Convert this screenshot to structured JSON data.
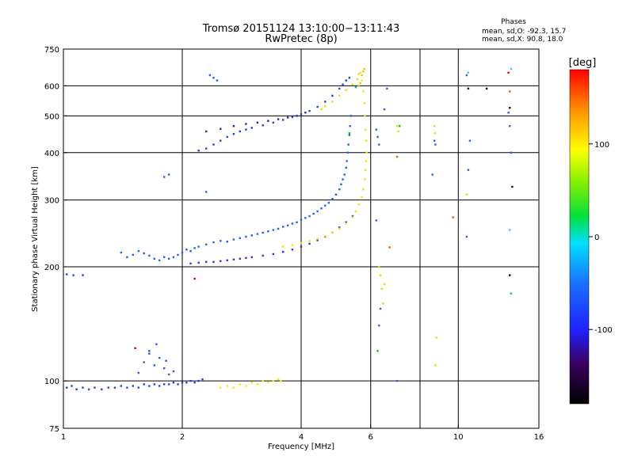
{
  "title_line1": "Tromsø 20151124 13:10:00−13:11:43",
  "title_line2": "RwPretec (8p)",
  "phases": {
    "heading": "Phases",
    "line_o": "mean, sd,O: -92.3, 15.7",
    "line_x": "mean, sd,X:  90.8, 18.0"
  },
  "colorbar": {
    "label": "[deg]",
    "ticks": [
      {
        "value": 100,
        "label": "100"
      },
      {
        "value": 0,
        "label": "0"
      },
      {
        "value": -100,
        "label": "-100"
      }
    ],
    "range": [
      -180,
      180
    ]
  },
  "chart_data": {
    "type": "scatter",
    "title": "Tromsø 20151124 13:10:00−13:11:43",
    "subtitle": "RwPretec (8p)",
    "xlabel": "Frequency [MHz]",
    "ylabel": "Stationary phase Virtual Height [km]",
    "x_scale": "log2",
    "y_scale": "log",
    "xlim": [
      1,
      16
    ],
    "ylim": [
      75,
      750
    ],
    "x_ticks": [
      {
        "value": 1,
        "label": "1"
      },
      {
        "value": 2,
        "label": "2"
      },
      {
        "value": 4,
        "label": "4"
      },
      {
        "value": 6,
        "label": "6"
      },
      {
        "value": 10,
        "label": "10"
      },
      {
        "value": 16,
        "label": "16"
      }
    ],
    "x_grid": [
      2,
      4,
      6,
      8,
      10
    ],
    "y_ticks": [
      {
        "value": 75,
        "label": "75"
      },
      {
        "value": 100,
        "label": "100"
      },
      {
        "value": 200,
        "label": "200"
      },
      {
        "value": 300,
        "label": "300"
      },
      {
        "value": 400,
        "label": "400"
      },
      {
        "value": 500,
        "label": "500"
      },
      {
        "value": 600,
        "label": "600"
      },
      {
        "value": 750,
        "label": "750"
      }
    ],
    "y_grid": [
      100,
      200,
      300,
      400,
      500,
      600
    ],
    "grid": true,
    "series": [
      {
        "color": "#1f3ff0",
        "phase": -95,
        "points": [
          [
            1.02,
            96
          ],
          [
            1.05,
            97
          ],
          [
            1.08,
            95
          ],
          [
            1.12,
            96
          ],
          [
            1.16,
            95
          ],
          [
            1.2,
            96
          ],
          [
            1.25,
            95
          ],
          [
            1.3,
            96
          ],
          [
            1.35,
            96
          ],
          [
            1.4,
            97
          ],
          [
            1.45,
            96
          ],
          [
            1.5,
            97
          ],
          [
            1.55,
            96
          ],
          [
            1.6,
            98
          ],
          [
            1.65,
            97
          ],
          [
            1.7,
            98
          ],
          [
            1.75,
            97
          ],
          [
            1.8,
            98
          ],
          [
            1.85,
            98
          ],
          [
            1.9,
            99
          ],
          [
            1.95,
            98
          ],
          [
            2.0,
            99
          ],
          [
            2.05,
            99
          ],
          [
            2.1,
            100
          ],
          [
            2.15,
            99
          ],
          [
            2.2,
            100
          ],
          [
            2.25,
            101
          ]
        ]
      },
      {
        "color": "#2a54ff",
        "phase": -80,
        "points": [
          [
            1.55,
            105
          ],
          [
            1.6,
            112
          ],
          [
            1.65,
            118
          ],
          [
            1.7,
            110
          ],
          [
            1.75,
            115
          ],
          [
            1.8,
            108
          ],
          [
            1.85,
            104
          ],
          [
            1.9,
            106
          ],
          [
            1.72,
            125
          ],
          [
            1.65,
            120
          ],
          [
            1.82,
            113
          ]
        ]
      },
      {
        "color": "#1e40e0",
        "phase": -100,
        "points": [
          [
            1.02,
            191
          ],
          [
            1.06,
            190
          ],
          [
            1.12,
            190
          ]
        ]
      },
      {
        "color": "#1d5fff",
        "phase": -90,
        "points": [
          [
            1.4,
            218
          ],
          [
            1.45,
            212
          ],
          [
            1.5,
            215
          ],
          [
            1.55,
            220
          ],
          [
            1.6,
            217
          ],
          [
            1.65,
            214
          ],
          [
            1.7,
            210
          ],
          [
            1.75,
            208
          ],
          [
            1.8,
            212
          ],
          [
            1.85,
            210
          ],
          [
            1.9,
            212
          ],
          [
            1.95,
            215
          ],
          [
            2.0,
            218
          ],
          [
            2.05,
            222
          ],
          [
            2.1,
            220
          ],
          [
            2.15,
            224
          ],
          [
            2.2,
            226
          ],
          [
            2.3,
            229
          ],
          [
            2.4,
            232
          ],
          [
            2.5,
            234
          ],
          [
            2.6,
            233
          ],
          [
            2.7,
            236
          ],
          [
            2.8,
            238
          ],
          [
            2.9,
            240
          ],
          [
            3.0,
            242
          ],
          [
            3.1,
            244
          ],
          [
            3.2,
            246
          ],
          [
            3.3,
            248
          ],
          [
            3.4,
            250
          ],
          [
            3.5,
            252
          ],
          [
            3.6,
            255
          ],
          [
            3.7,
            257
          ],
          [
            3.8,
            260
          ],
          [
            3.9,
            262
          ],
          [
            4.0,
            266
          ],
          [
            4.1,
            269
          ],
          [
            4.2,
            272
          ],
          [
            4.3,
            276
          ],
          [
            4.4,
            280
          ],
          [
            4.5,
            285
          ],
          [
            4.6,
            290
          ],
          [
            4.7,
            295
          ],
          [
            4.8,
            302
          ],
          [
            4.9,
            310
          ],
          [
            5.0,
            320
          ],
          [
            5.05,
            330
          ],
          [
            5.1,
            340
          ],
          [
            5.15,
            350
          ],
          [
            5.2,
            365
          ],
          [
            5.22,
            380
          ],
          [
            5.25,
            400
          ],
          [
            5.27,
            420
          ],
          [
            5.3,
            445
          ],
          [
            5.32,
            470
          ],
          [
            5.35,
            500
          ]
        ]
      },
      {
        "color": "#3a2fd0",
        "phase": -110,
        "points": [
          [
            2.1,
            204
          ],
          [
            2.2,
            205
          ],
          [
            2.3,
            206
          ],
          [
            2.4,
            206
          ],
          [
            2.5,
            207
          ],
          [
            2.6,
            208
          ],
          [
            2.7,
            209
          ],
          [
            2.8,
            210
          ],
          [
            2.9,
            211
          ],
          [
            3.0,
            212
          ],
          [
            3.2,
            214
          ],
          [
            3.4,
            216
          ],
          [
            3.6,
            219
          ],
          [
            3.8,
            222
          ],
          [
            4.0,
            226
          ],
          [
            4.2,
            230
          ],
          [
            4.4,
            235
          ],
          [
            4.6,
            240
          ],
          [
            4.8,
            246
          ],
          [
            5.0,
            254
          ],
          [
            5.2,
            262
          ],
          [
            5.4,
            272
          ]
        ]
      },
      {
        "color": "#1744f0",
        "phase": -95,
        "points": [
          [
            2.2,
            405
          ],
          [
            2.3,
            410
          ],
          [
            2.4,
            420
          ],
          [
            2.5,
            430
          ],
          [
            2.6,
            440
          ],
          [
            2.7,
            448
          ],
          [
            2.8,
            455
          ],
          [
            2.9,
            460
          ],
          [
            3.0,
            465
          ],
          [
            3.2,
            472
          ],
          [
            3.4,
            480
          ],
          [
            3.6,
            488
          ],
          [
            3.8,
            496
          ],
          [
            4.0,
            505
          ],
          [
            4.2,
            515
          ],
          [
            4.4,
            528
          ],
          [
            4.6,
            545
          ],
          [
            4.8,
            565
          ],
          [
            5.0,
            590
          ],
          [
            5.1,
            605
          ],
          [
            5.2,
            620
          ],
          [
            5.3,
            630
          ]
        ]
      },
      {
        "color": "#3320b8",
        "phase": -115,
        "points": [
          [
            2.3,
            455
          ],
          [
            2.5,
            462
          ],
          [
            2.7,
            470
          ],
          [
            2.9,
            476
          ],
          [
            3.1,
            480
          ],
          [
            3.3,
            485
          ],
          [
            3.5,
            490
          ],
          [
            3.7,
            495
          ],
          [
            3.9,
            500
          ],
          [
            4.1,
            510
          ]
        ]
      },
      {
        "color": "#1f5aff",
        "phase": -85,
        "points": [
          [
            2.35,
            640
          ],
          [
            2.4,
            630
          ],
          [
            2.45,
            620
          ],
          [
            1.8,
            345
          ],
          [
            1.85,
            350
          ],
          [
            2.3,
            315
          ]
        ]
      },
      {
        "color": "#f2f000",
        "phase": 95,
        "points": [
          [
            2.5,
            96
          ],
          [
            2.6,
            97
          ],
          [
            2.7,
            96
          ],
          [
            2.8,
            98
          ],
          [
            2.9,
            97
          ],
          [
            3.0,
            99
          ],
          [
            3.1,
            98
          ],
          [
            3.2,
            100
          ],
          [
            3.3,
            99
          ],
          [
            3.4,
            100
          ],
          [
            3.5,
            101
          ],
          [
            3.55,
            100
          ]
        ]
      },
      {
        "color": "#eaea00",
        "phase": 100,
        "points": [
          [
            3.6,
            226
          ],
          [
            3.8,
            228
          ],
          [
            4.0,
            231
          ],
          [
            4.2,
            234
          ],
          [
            4.4,
            237
          ],
          [
            4.6,
            241
          ],
          [
            4.8,
            246
          ],
          [
            5.0,
            252
          ],
          [
            5.2,
            260
          ],
          [
            5.4,
            270
          ],
          [
            5.5,
            280
          ],
          [
            5.6,
            292
          ],
          [
            5.7,
            305
          ],
          [
            5.75,
            320
          ],
          [
            5.8,
            340
          ],
          [
            5.82,
            360
          ],
          [
            5.84,
            380
          ],
          [
            5.86,
            400
          ],
          [
            5.85,
            430
          ],
          [
            5.82,
            460
          ],
          [
            5.8,
            500
          ],
          [
            5.78,
            540
          ],
          [
            5.75,
            580
          ],
          [
            5.7,
            620
          ],
          [
            5.65,
            650
          ]
        ]
      },
      {
        "color": "#f2d800",
        "phase": 110,
        "points": [
          [
            4.5,
            520
          ],
          [
            4.6,
            530
          ],
          [
            4.8,
            545
          ],
          [
            5.0,
            565
          ],
          [
            5.2,
            585
          ],
          [
            5.4,
            605
          ],
          [
            5.55,
            625
          ],
          [
            5.6,
            645
          ]
        ]
      },
      {
        "color": "#f0c000",
        "phase": 120,
        "points": [
          [
            5.6,
            600
          ],
          [
            5.65,
            610
          ],
          [
            5.7,
            640
          ],
          [
            5.75,
            655
          ],
          [
            5.78,
            665
          ]
        ]
      },
      {
        "color": "#e0e000",
        "phase": 90,
        "points": [
          [
            6.3,
            200
          ],
          [
            6.35,
            190
          ],
          [
            6.4,
            175
          ],
          [
            6.45,
            160
          ],
          [
            6.5,
            180
          ],
          [
            8.8,
            130
          ],
          [
            8.75,
            110
          ],
          [
            8.7,
            470
          ],
          [
            8.72,
            450
          ],
          [
            7.0,
            470
          ],
          [
            7.05,
            455
          ],
          [
            10.5,
            310
          ]
        ]
      },
      {
        "color": "#00d000",
        "phase": 30,
        "points": [
          [
            6.25,
            120
          ],
          [
            7.1,
            470
          ],
          [
            5.3,
            450
          ]
        ]
      },
      {
        "color": "#2a5cff",
        "phase": -80,
        "points": [
          [
            6.2,
            460
          ],
          [
            6.25,
            440
          ],
          [
            6.3,
            420
          ],
          [
            6.2,
            265
          ],
          [
            6.3,
            140
          ],
          [
            6.35,
            155
          ],
          [
            6.6,
            590
          ],
          [
            6.5,
            520
          ],
          [
            7.0,
            100
          ],
          [
            8.6,
            350
          ],
          [
            8.7,
            430
          ],
          [
            8.75,
            420
          ],
          [
            10.5,
            240
          ],
          [
            10.6,
            360
          ],
          [
            10.7,
            430
          ],
          [
            10.5,
            640
          ],
          [
            13.5,
            470
          ],
          [
            13.6,
            400
          ],
          [
            13.4,
            510
          ]
        ]
      },
      {
        "color": "#40c8ff",
        "phase": -30,
        "points": [
          [
            10.6,
            650
          ],
          [
            13.5,
            250
          ],
          [
            13.6,
            665
          ]
        ]
      },
      {
        "color": "#e06000",
        "phase": 150,
        "points": [
          [
            6.7,
            225
          ],
          [
            9.7,
            270
          ],
          [
            7.0,
            390
          ],
          [
            13.5,
            580
          ]
        ]
      },
      {
        "color": "#e00000",
        "phase": 170,
        "points": [
          [
            1.52,
            122
          ],
          [
            13.4,
            650
          ],
          [
            2.15,
            186
          ]
        ]
      },
      {
        "color": "#00c0a0",
        "phase": 50,
        "points": [
          [
            13.6,
            170
          ],
          [
            5.5,
            595
          ]
        ]
      },
      {
        "color": "#200030",
        "phase": -170,
        "points": [
          [
            11.8,
            590
          ],
          [
            13.5,
            525
          ],
          [
            13.7,
            325
          ],
          [
            10.6,
            590
          ],
          [
            13.5,
            190
          ]
        ]
      }
    ]
  }
}
